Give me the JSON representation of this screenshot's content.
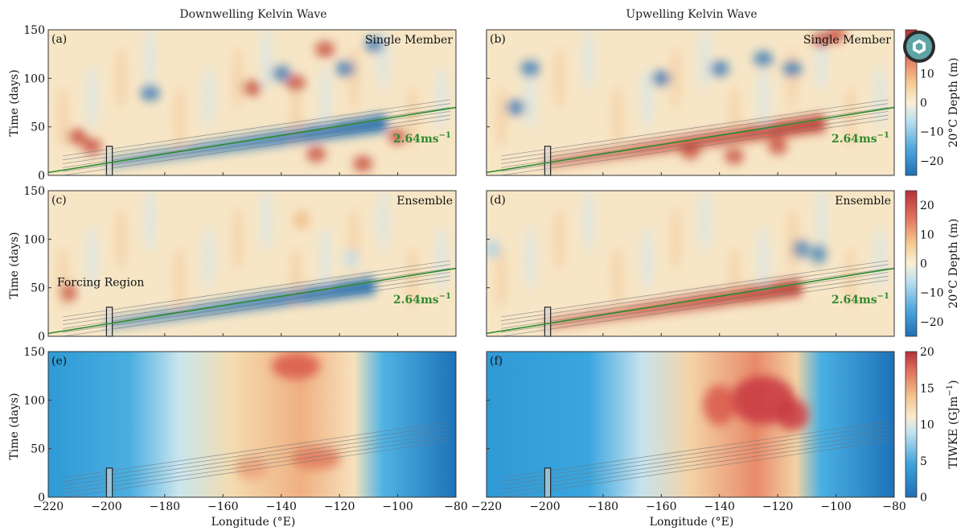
{
  "figure": {
    "column_titles": [
      "Downwelling Kelvin Wave",
      "Upwelling Kelvin Wave"
    ],
    "x_axis_label": "Longitude (°E)",
    "y_axis_label": "Time (days)",
    "x_ticks": [
      "-220",
      "-200",
      "-180",
      "-160",
      "-140",
      "-120",
      "-100",
      "-80"
    ],
    "y_ticks": [
      "0",
      "50",
      "100",
      "150"
    ],
    "speed_label": "2.64ms",
    "speed_exponent": "−1",
    "forcing_label": "Forcing Region",
    "help_icon": "help-icon"
  },
  "chart_data": [
    {
      "id": "a",
      "tag": "(a)",
      "type": "heatmap",
      "variable": "depth",
      "wave": "downwelling",
      "corner_label": "Single Member",
      "xlim": [
        -220,
        -80
      ],
      "ylim": [
        0,
        150
      ],
      "wave_line_speed": "2.64ms-1",
      "show_speed": true,
      "show_line": true,
      "forcing_region": {
        "x": [
          -200,
          -198
        ],
        "y": [
          0,
          30
        ]
      }
    },
    {
      "id": "b",
      "tag": "(b)",
      "type": "heatmap",
      "variable": "depth",
      "wave": "upwelling",
      "corner_label": "Single Member",
      "xlim": [
        -220,
        -80
      ],
      "ylim": [
        0,
        150
      ],
      "wave_line_speed": "2.64ms-1",
      "show_speed": true,
      "show_line": true,
      "forcing_region": {
        "x": [
          -200,
          -198
        ],
        "y": [
          0,
          30
        ]
      }
    },
    {
      "id": "c",
      "tag": "(c)",
      "type": "heatmap",
      "variable": "depth",
      "wave": "downwelling",
      "corner_label": "Ensemble",
      "xlim": [
        -220,
        -80
      ],
      "ylim": [
        0,
        150
      ],
      "wave_line_speed": "2.64ms-1",
      "show_speed": true,
      "show_line": true,
      "forcing_label": true,
      "forcing_region": {
        "x": [
          -200,
          -198
        ],
        "y": [
          0,
          30
        ]
      }
    },
    {
      "id": "d",
      "tag": "(d)",
      "type": "heatmap",
      "variable": "depth",
      "wave": "upwelling",
      "corner_label": "Ensemble",
      "xlim": [
        -220,
        -80
      ],
      "ylim": [
        0,
        150
      ],
      "wave_line_speed": "2.64ms-1",
      "show_speed": true,
      "show_line": true,
      "forcing_region": {
        "x": [
          -200,
          -198
        ],
        "y": [
          0,
          30
        ]
      }
    },
    {
      "id": "e",
      "tag": "(e)",
      "type": "heatmap",
      "variable": "tiwke",
      "wave": "downwelling",
      "corner_label": "",
      "xlim": [
        -220,
        -80
      ],
      "ylim": [
        0,
        150
      ],
      "show_speed": false,
      "show_line": false,
      "forcing_region": {
        "x": [
          -200,
          -198
        ],
        "y": [
          0,
          30
        ]
      }
    },
    {
      "id": "f",
      "tag": "(f)",
      "type": "heatmap",
      "variable": "tiwke",
      "wave": "upwelling",
      "corner_label": "",
      "xlim": [
        -220,
        -80
      ],
      "ylim": [
        0,
        150
      ],
      "show_speed": false,
      "show_line": false,
      "forcing_region": {
        "x": [
          -200,
          -198
        ],
        "y": [
          0,
          30
        ]
      }
    }
  ],
  "colorbars": [
    {
      "id": "depth1",
      "label": "20°C Depth (m)",
      "ticks": [
        "10",
        "0",
        "−10",
        "−20"
      ],
      "tick_values": [
        10,
        0,
        -10,
        -20
      ],
      "range": [
        -25,
        25
      ],
      "cmap": "RdYlBu_r"
    },
    {
      "id": "depth2",
      "label": "20°C Depth (m)",
      "ticks": [
        "20",
        "10",
        "0",
        "−10",
        "−20"
      ],
      "tick_values": [
        20,
        10,
        0,
        -10,
        -20
      ],
      "range": [
        -25,
        25
      ],
      "cmap": "RdYlBu_r"
    },
    {
      "id": "tiwke",
      "label_main": "TIWKE (GJm",
      "label_exp": "−1",
      "label_tail": ")",
      "ticks": [
        "20",
        "15",
        "10",
        "5",
        "0"
      ],
      "tick_values": [
        20,
        15,
        10,
        5,
        0
      ],
      "range": [
        0,
        20
      ],
      "cmap": "RdYlBu_r"
    }
  ],
  "colors": {
    "line": "#2e8b2e",
    "contour": "#6f7780",
    "neg": "#1f6fb4",
    "pos": "#c0392b",
    "neutral": "#f7e8c8"
  }
}
